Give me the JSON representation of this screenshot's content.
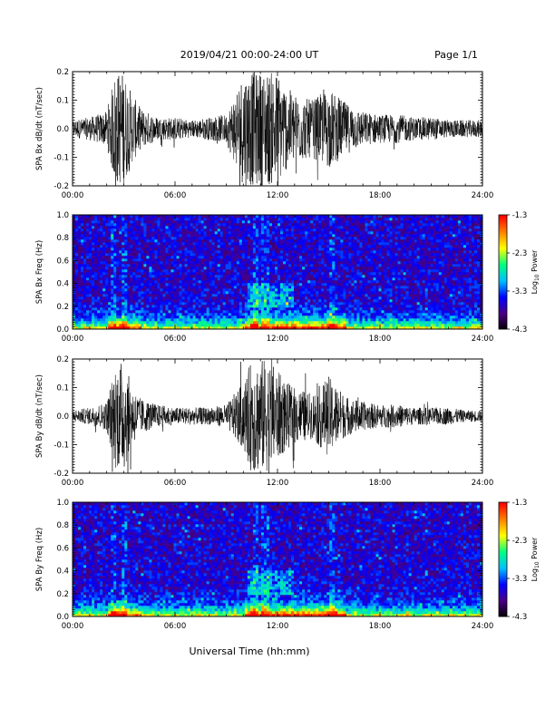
{
  "header": {
    "title": "2019/04/21  00:00-24:00 UT",
    "page": "Page 1/1"
  },
  "footer": {
    "xlabel": "Universal Time (hh:mm)"
  },
  "colors": {
    "trace": "#000000",
    "spectrogram_background": "#2a0a4a"
  },
  "colorbar": {
    "ticks": [
      "-1.3",
      "-2.3",
      "-3.3",
      "-4.3"
    ],
    "label_main": "Log",
    "label_sub": "10",
    "label_tail": " Power",
    "colormap": [
      "#000000",
      "#4b0082",
      "#0000ff",
      "#00bfff",
      "#00ff80",
      "#ffff00",
      "#ff8000",
      "#ff0000"
    ]
  },
  "chart_data": [
    {
      "type": "line",
      "name": "bx-waveform",
      "ylabel": "SPA Bx dB/dt (nT/sec)",
      "xlim": [
        0,
        24
      ],
      "ylim": [
        -0.2,
        0.2
      ],
      "x_tick_labels": [
        "00:00",
        "06:00",
        "12:00",
        "18:00",
        "24:00"
      ],
      "y_tick_labels": [
        "0.2",
        "0.1",
        "0.0",
        "-0.1",
        "-0.2"
      ],
      "y_tick_values": [
        0.2,
        0.1,
        0.0,
        -0.1,
        -0.2
      ],
      "envelope": {
        "hours": [
          0,
          1,
          2,
          2.5,
          3,
          3.5,
          4,
          5,
          6,
          7,
          8,
          9,
          10,
          10.5,
          11,
          11.5,
          12,
          12.5,
          13,
          14,
          15,
          16,
          17,
          18,
          19,
          20,
          21,
          22,
          23,
          24
        ],
        "amplitude": [
          0.03,
          0.04,
          0.06,
          0.2,
          0.2,
          0.12,
          0.07,
          0.04,
          0.04,
          0.03,
          0.04,
          0.05,
          0.2,
          0.2,
          0.2,
          0.2,
          0.2,
          0.15,
          0.12,
          0.1,
          0.14,
          0.09,
          0.06,
          0.05,
          0.05,
          0.04,
          0.04,
          0.03,
          0.03,
          0.03
        ]
      }
    },
    {
      "type": "heatmap",
      "name": "bx-spectrogram",
      "ylabel": "SPA Bx Freq (Hz)",
      "xlim": [
        0,
        24
      ],
      "ylim": [
        0,
        1.0
      ],
      "x_tick_labels": [
        "00:00",
        "06:00",
        "12:00",
        "18:00",
        "24:00"
      ],
      "y_tick_labels": [
        "1.0",
        "0.8",
        "0.6",
        "0.4",
        "0.2",
        "0.0"
      ],
      "y_tick_values": [
        1.0,
        0.8,
        0.6,
        0.4,
        0.2,
        0.0
      ],
      "color_range": [
        -4.3,
        -1.3
      ],
      "colorbar_label": "Log10 Power"
    },
    {
      "type": "line",
      "name": "by-waveform",
      "ylabel": "SPA By dB/dt (nT/sec)",
      "xlim": [
        0,
        24
      ],
      "ylim": [
        -0.2,
        0.2
      ],
      "x_tick_labels": [
        "00:00",
        "06:00",
        "12:00",
        "18:00",
        "24:00"
      ],
      "y_tick_labels": [
        "0.2",
        "0.1",
        "0.0",
        "-0.1",
        "-0.2"
      ],
      "y_tick_values": [
        0.2,
        0.1,
        0.0,
        -0.1,
        -0.2
      ],
      "envelope": {
        "hours": [
          0,
          1,
          2,
          2.5,
          3,
          3.5,
          4,
          5,
          6,
          7,
          8,
          9,
          10,
          10.5,
          11,
          11.5,
          12,
          12.5,
          13,
          14,
          15,
          16,
          17,
          18,
          19,
          20,
          21,
          22,
          23,
          24
        ],
        "amplitude": [
          0.02,
          0.03,
          0.05,
          0.18,
          0.2,
          0.1,
          0.06,
          0.04,
          0.03,
          0.03,
          0.03,
          0.04,
          0.12,
          0.2,
          0.2,
          0.2,
          0.16,
          0.12,
          0.1,
          0.08,
          0.14,
          0.07,
          0.05,
          0.04,
          0.04,
          0.03,
          0.03,
          0.03,
          0.02,
          0.02
        ]
      }
    },
    {
      "type": "heatmap",
      "name": "by-spectrogram",
      "ylabel": "SPA By Freq (Hz)",
      "xlim": [
        0,
        24
      ],
      "ylim": [
        0,
        1.0
      ],
      "x_tick_labels": [
        "00:00",
        "06:00",
        "12:00",
        "18:00",
        "24:00"
      ],
      "y_tick_labels": [
        "1.0",
        "0.8",
        "0.6",
        "0.4",
        "0.2",
        "0.0"
      ],
      "y_tick_values": [
        1.0,
        0.8,
        0.6,
        0.4,
        0.2,
        0.0
      ],
      "color_range": [
        -4.3,
        -1.3
      ],
      "colorbar_label": "Log10 Power"
    }
  ]
}
